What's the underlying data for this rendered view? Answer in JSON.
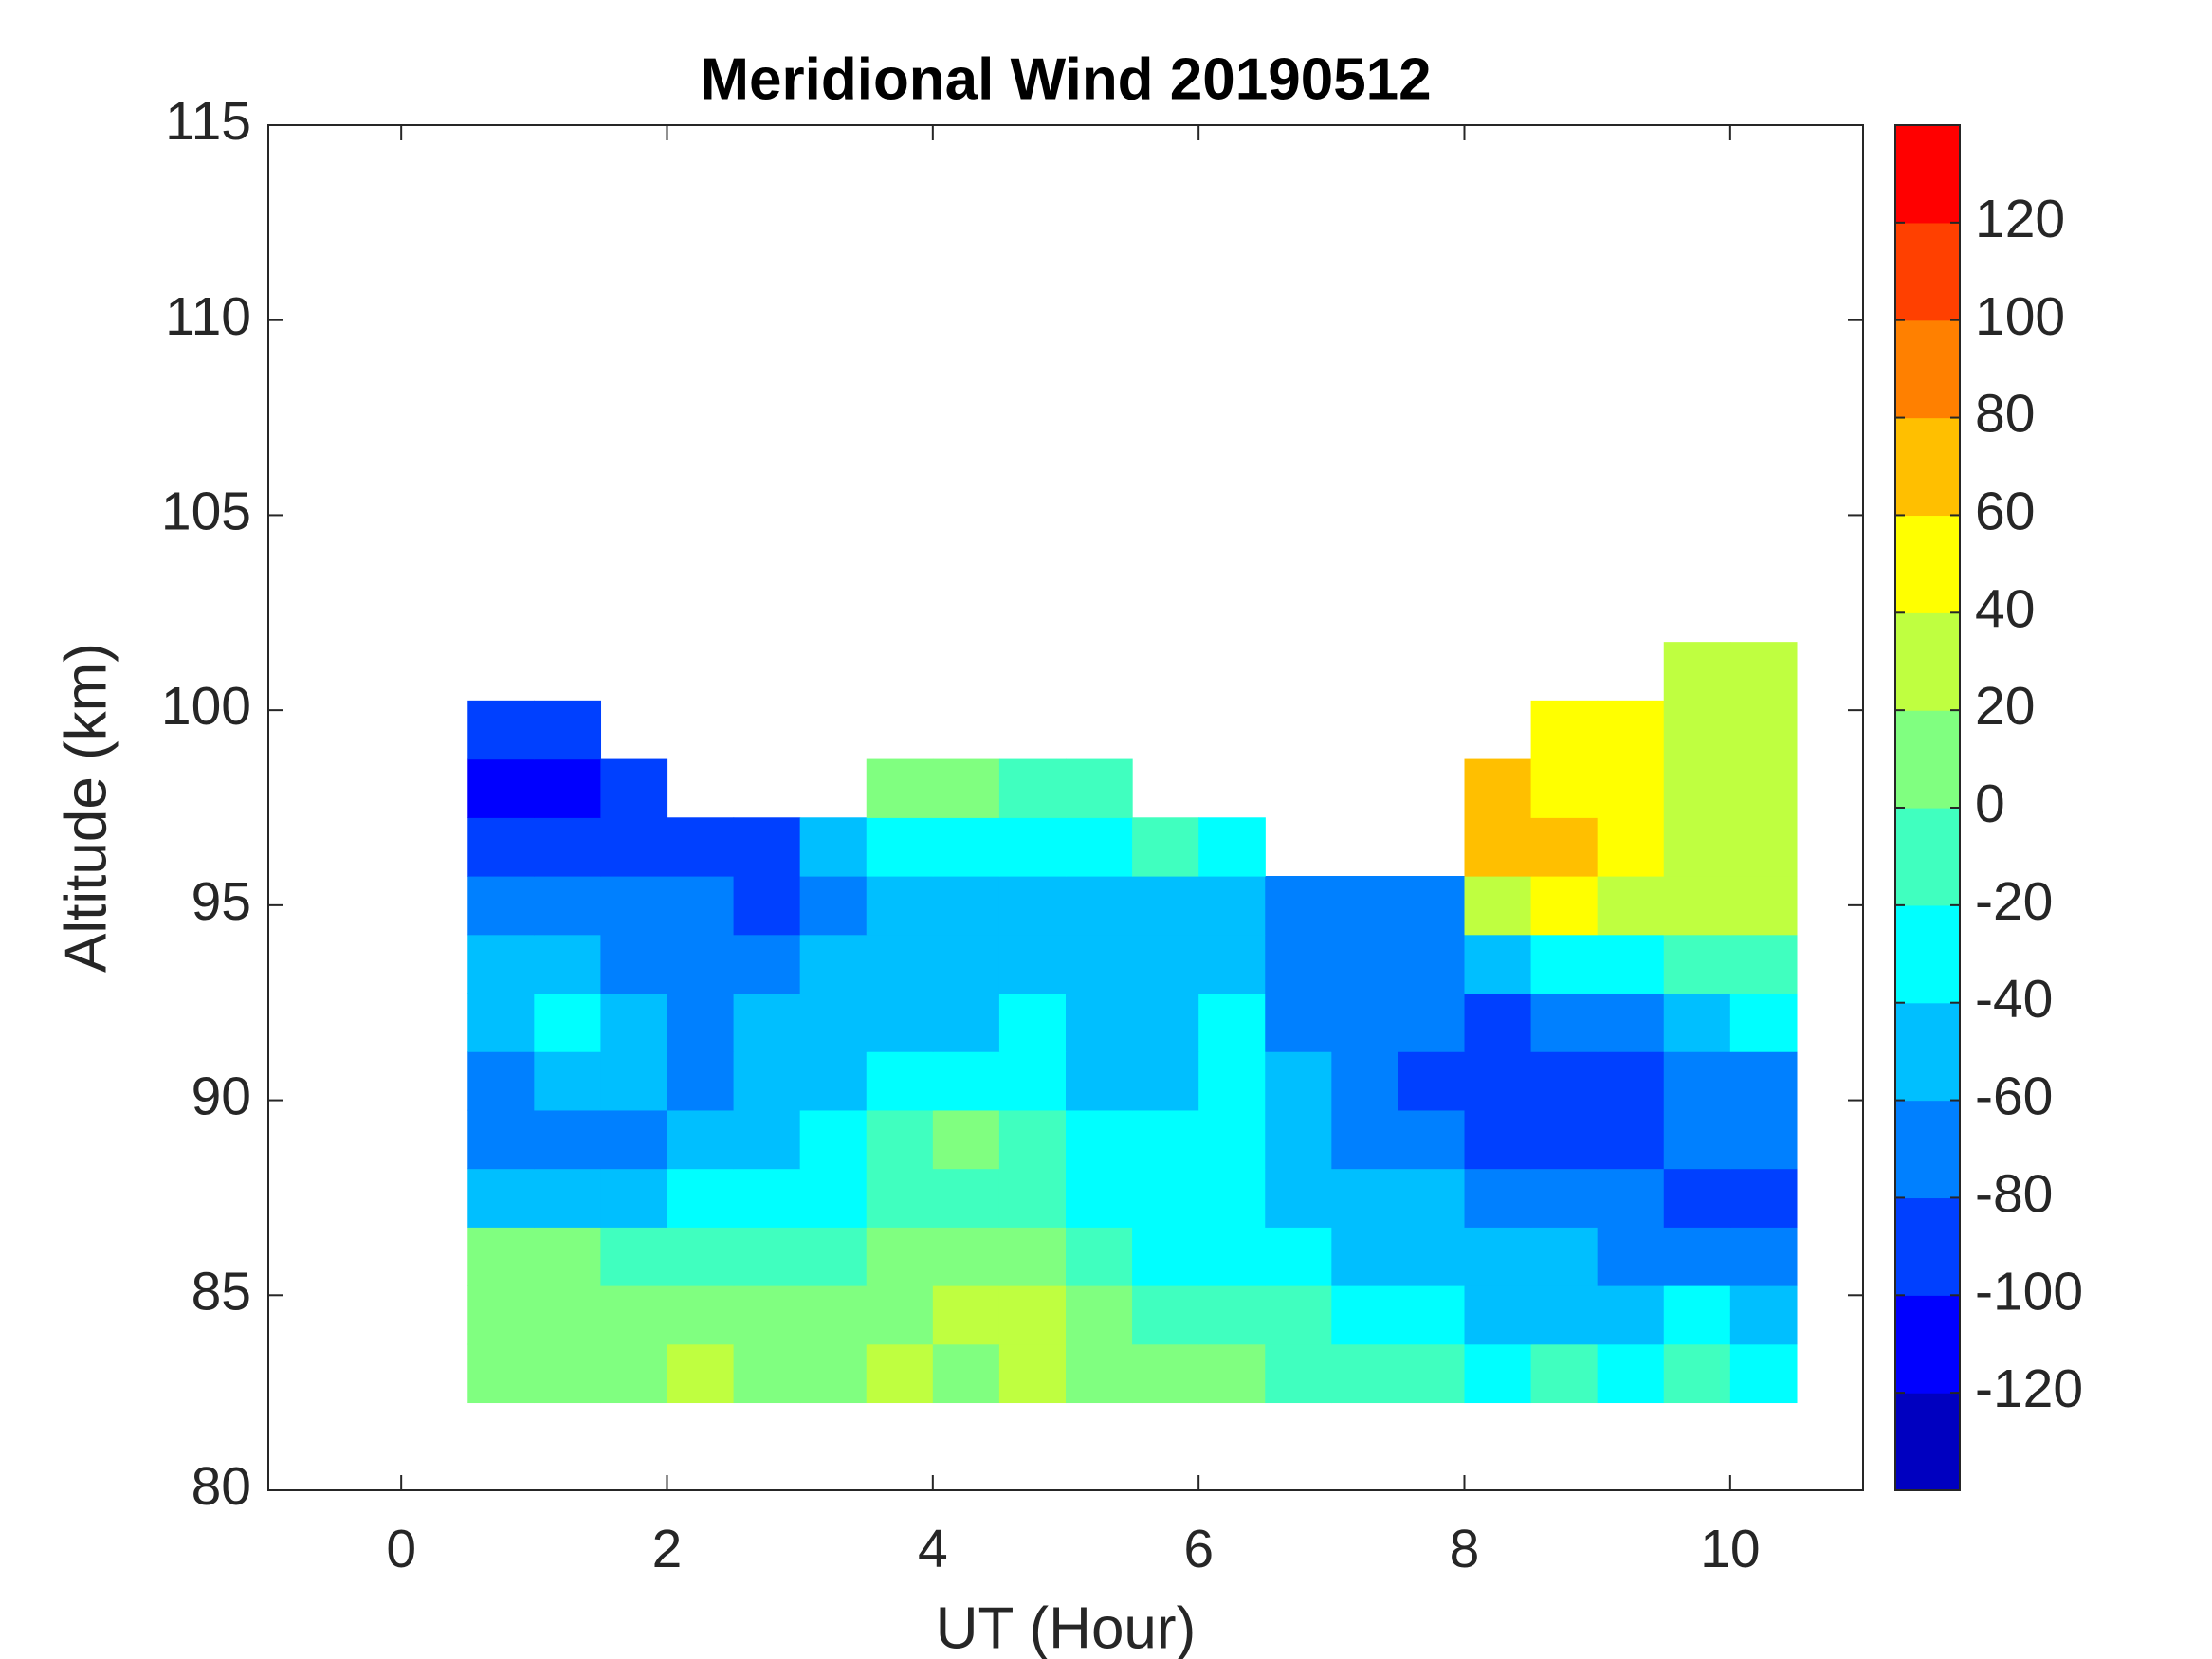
{
  "chart_data": {
    "type": "contourf",
    "title": "Meridional Wind 20190512",
    "x_label": "UT (Hour)",
    "y_label": "Altitude (km)",
    "xlim": [
      -1,
      11
    ],
    "xticks": [
      0,
      2,
      4,
      6,
      8,
      10
    ],
    "ylim": [
      80,
      115
    ],
    "yticks": [
      80,
      85,
      90,
      95,
      100,
      105,
      110,
      115
    ],
    "x": [
      0.75,
      1.25,
      1.75,
      2.25,
      2.75,
      3.25,
      3.75,
      4.25,
      4.75,
      5.25,
      5.75,
      6.25,
      6.75,
      7.25,
      7.75,
      8.25,
      8.75,
      9.25,
      9.75,
      10.25
    ],
    "y": [
      83,
      84.5,
      86,
      87.5,
      89,
      90.5,
      92,
      93.5,
      95,
      96.5,
      98,
      99.5,
      101
    ],
    "z": [
      [
        10,
        10,
        10,
        30,
        10,
        10,
        30,
        10,
        30,
        10,
        0,
        0,
        -10,
        -20,
        -20,
        -30,
        -20,
        -30,
        -20,
        -30
      ],
      [
        10,
        10,
        10,
        0,
        0,
        10,
        10,
        20,
        20,
        10,
        -20,
        -20,
        -20,
        -40,
        -40,
        -50,
        -50,
        -50,
        -40,
        -50
      ],
      [
        0,
        0,
        -20,
        -20,
        -10,
        -10,
        10,
        0,
        10,
        -10,
        -40,
        -40,
        -40,
        -50,
        -50,
        -60,
        -60,
        -70,
        -70,
        -80
      ],
      [
        -60,
        -60,
        -50,
        -40,
        -30,
        -30,
        -20,
        -10,
        -10,
        -30,
        -40,
        -40,
        -50,
        -60,
        -60,
        -70,
        -70,
        -80,
        -90,
        -90
      ],
      [
        -70,
        -70,
        -70,
        -60,
        -50,
        -40,
        -20,
        10,
        -10,
        -30,
        -40,
        -30,
        -50,
        -70,
        -80,
        -90,
        -90,
        -90,
        -80,
        -80
      ],
      [
        -70,
        -50,
        -60,
        -70,
        -60,
        -50,
        -40,
        -30,
        -40,
        -50,
        -50,
        -30,
        -60,
        -70,
        -90,
        -100,
        -100,
        -90,
        -80,
        -70
      ],
      [
        -50,
        -40,
        -50,
        -70,
        -60,
        -60,
        -50,
        -50,
        -40,
        -50,
        -60,
        -40,
        -70,
        -80,
        -80,
        -100,
        -80,
        -70,
        -60,
        -40
      ],
      [
        -50,
        -60,
        -70,
        -70,
        -70,
        -60,
        -60,
        -50,
        -60,
        -60,
        -60,
        -50,
        -80,
        -80,
        -80,
        -60,
        -40,
        -30,
        -20,
        -10
      ],
      [
        -80,
        -80,
        -80,
        -80,
        -90,
        -70,
        -50,
        -50,
        -60,
        -60,
        -50,
        -60,
        -70,
        -70,
        -70,
        20,
        40,
        30,
        30,
        30
      ],
      [
        -100,
        -100,
        -90,
        -90,
        -90,
        -50,
        -30,
        -40,
        -40,
        -30,
        -20,
        -40,
        null,
        null,
        null,
        60,
        60,
        40,
        30,
        30
      ],
      [
        -110,
        -110,
        -90,
        null,
        null,
        null,
        0,
        10,
        -10,
        -10,
        null,
        null,
        null,
        null,
        null,
        60,
        40,
        40,
        30,
        20
      ],
      [
        -100,
        -100,
        null,
        null,
        null,
        null,
        null,
        null,
        null,
        null,
        null,
        null,
        null,
        null,
        null,
        null,
        40,
        40,
        20,
        20
      ],
      [
        null,
        null,
        null,
        null,
        null,
        null,
        null,
        null,
        null,
        null,
        null,
        null,
        null,
        null,
        null,
        null,
        null,
        null,
        20,
        20
      ]
    ],
    "colorbar": {
      "lim": [
        -140,
        140
      ],
      "step": 20,
      "ticks": [
        -120,
        -100,
        -80,
        -60,
        -40,
        -20,
        0,
        20,
        40,
        60,
        80,
        100,
        120
      ],
      "colors": [
        "#0000c0",
        "#0000ff",
        "#0040ff",
        "#0080ff",
        "#00bfff",
        "#00ffff",
        "#40ffbf",
        "#80ff80",
        "#bfff40",
        "#ffff00",
        "#ffbf00",
        "#ff8000",
        "#ff4000",
        "#ff0000"
      ]
    }
  }
}
